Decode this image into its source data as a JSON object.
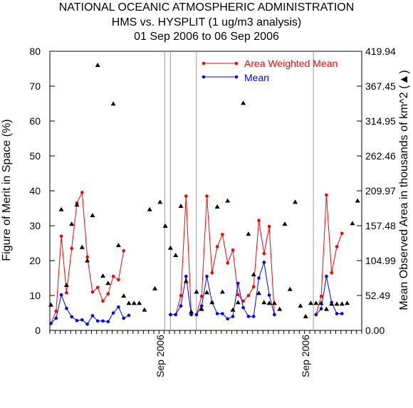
{
  "title_lines": [
    "NATIONAL OCEANIC ATMOSPHERIC ADMINISTRATION",
    "HMS vs. HYSPLIT (1 ug/m3 analysis)",
    "01 Sep 2006 to 06 Sep 2006"
  ],
  "chart_data": {
    "type": "line",
    "title": "NATIONAL OCEANIC ATMOSPHERIC ADMINISTRATION HMS vs. HYSPLIT (1 ug/m3 analysis) 01 Sep 2006 to 06 Sep 2006",
    "ylabel": "Figure of Merit in Space (%)",
    "y2label": "Mean Observed Area in thousands of km^2 (▲)",
    "ylim": [
      0,
      80
    ],
    "y2lim": [
      0,
      419.94
    ],
    "yticks": [
      "0",
      "10",
      "20",
      "30",
      "40",
      "50",
      "60",
      "70",
      "80"
    ],
    "y2ticks": [
      "0.00",
      "52.49",
      "104.99",
      "157.48",
      "209.97",
      "262.46",
      "314.95",
      "367.45",
      "419.94"
    ],
    "x_count": 60,
    "x_labels": [
      {
        "index": 21,
        "text": "Sep 2006"
      },
      {
        "index": 49,
        "text": "Sep 2006"
      }
    ],
    "separators": [
      22.1,
      23.2,
      28.2,
      50.7
    ],
    "legend_position": "top-right",
    "grid": false,
    "colors": {
      "awm": "#ff0000",
      "mean": "#0000ff",
      "area": "#000000"
    },
    "series": [
      {
        "name": "Area Weighted Mean",
        "segments": [
          {
            "x": [
              0,
              1,
              2,
              3,
              4,
              5,
              6,
              7,
              8,
              9,
              10,
              11,
              12,
              13,
              14,
              15,
              16,
              17,
              18,
              19,
              20,
              21
            ],
            "y": [
              2,
              5.5,
              27,
              10.8,
              23.5,
              36.5,
              39.5,
              21,
              11,
              12.3,
              8.4,
              10.5,
              15.5,
              14.5,
              22.8,
              null,
              null,
              null,
              null,
              null,
              null,
              null
            ]
          },
          {
            "x": [
              23,
              24,
              25,
              26,
              27
            ],
            "y": [
              4.5,
              4.5,
              10,
              38.5,
              4.5
            ]
          },
          {
            "x": [
              28,
              29,
              30,
              31,
              32,
              33,
              34,
              35,
              36,
              37,
              38,
              39,
              40,
              41,
              42,
              43,
              44,
              45,
              46,
              47,
              48,
              49,
              50
            ],
            "y": [
              4.5,
              9.8,
              38.5,
              16.5,
              24,
              27.5,
              19.3,
              23,
              10.2,
              8.4,
              10,
              12.5,
              31.5,
              22,
              29.8,
              4.5,
              null,
              null,
              null,
              null,
              null,
              null,
              null
            ]
          },
          {
            "x": [
              51,
              52,
              53,
              54,
              55,
              56,
              57,
              58,
              59
            ],
            "y": [
              4.5,
              9.8,
              38.8,
              16.5,
              24,
              27.8,
              null,
              null,
              null
            ]
          }
        ]
      },
      {
        "name": "Mean",
        "segments": [
          {
            "x": [
              0,
              1,
              2,
              3,
              4,
              5,
              6,
              7,
              8,
              9,
              10,
              11,
              12,
              13,
              14,
              15,
              16,
              17,
              18,
              19,
              20,
              21
            ],
            "y": [
              2,
              3.5,
              10.2,
              6.3,
              3.9,
              2.8,
              3,
              1.8,
              4.2,
              2.7,
              2.7,
              2.5,
              5,
              6.7,
              3.5,
              4.3,
              null,
              null,
              null,
              null,
              null,
              null
            ]
          },
          {
            "x": [
              23,
              24,
              25,
              26,
              27
            ],
            "y": [
              4.5,
              4.5,
              7,
              15.5,
              4.5
            ]
          },
          {
            "x": [
              28,
              29,
              30,
              31,
              32,
              33,
              34,
              35,
              36,
              37,
              38,
              39,
              40,
              41,
              42,
              43,
              44
            ],
            "y": [
              4.5,
              7,
              15.5,
              8,
              4.8,
              4.8,
              3.3,
              4,
              13.5,
              6.5,
              4,
              4,
              15,
              19.5,
              10.1,
              4.5,
              null
            ]
          },
          {
            "x": [
              51,
              52,
              53,
              54,
              55,
              56,
              57,
              58,
              59
            ],
            "y": [
              4.5,
              6.2,
              15.5,
              8,
              4.8,
              4.8,
              null,
              null,
              null
            ]
          }
        ]
      }
    ],
    "area_points": {
      "x": [
        0,
        2,
        3,
        4,
        5,
        6,
        7,
        8,
        9,
        10,
        11,
        12,
        13,
        14,
        15,
        16,
        17,
        18,
        19,
        20,
        21,
        22,
        23,
        24,
        25,
        26,
        27,
        28,
        29,
        30,
        31,
        32,
        33,
        34,
        35,
        36,
        37,
        38,
        39,
        40,
        41,
        42,
        43,
        44,
        45,
        46,
        47,
        48,
        49,
        50,
        51,
        52,
        53,
        54,
        55,
        56,
        57,
        58,
        59
      ],
      "y": [
        38.5,
        182,
        68,
        160,
        189,
        125,
        105,
        173,
        399,
        82,
        71,
        341,
        128,
        52,
        41,
        41,
        41,
        31,
        182,
        63,
        193,
        157,
        124,
        113,
        187,
        74,
        28,
        58,
        32,
        57,
        42,
        186,
        58,
        195,
        31,
        42,
        342,
        145,
        84,
        56,
        42,
        41,
        41,
        32,
        160,
        62,
        193,
        37,
        21,
        41,
        41,
        41,
        32,
        40,
        40,
        40,
        41,
        161,
        195
      ]
    }
  }
}
